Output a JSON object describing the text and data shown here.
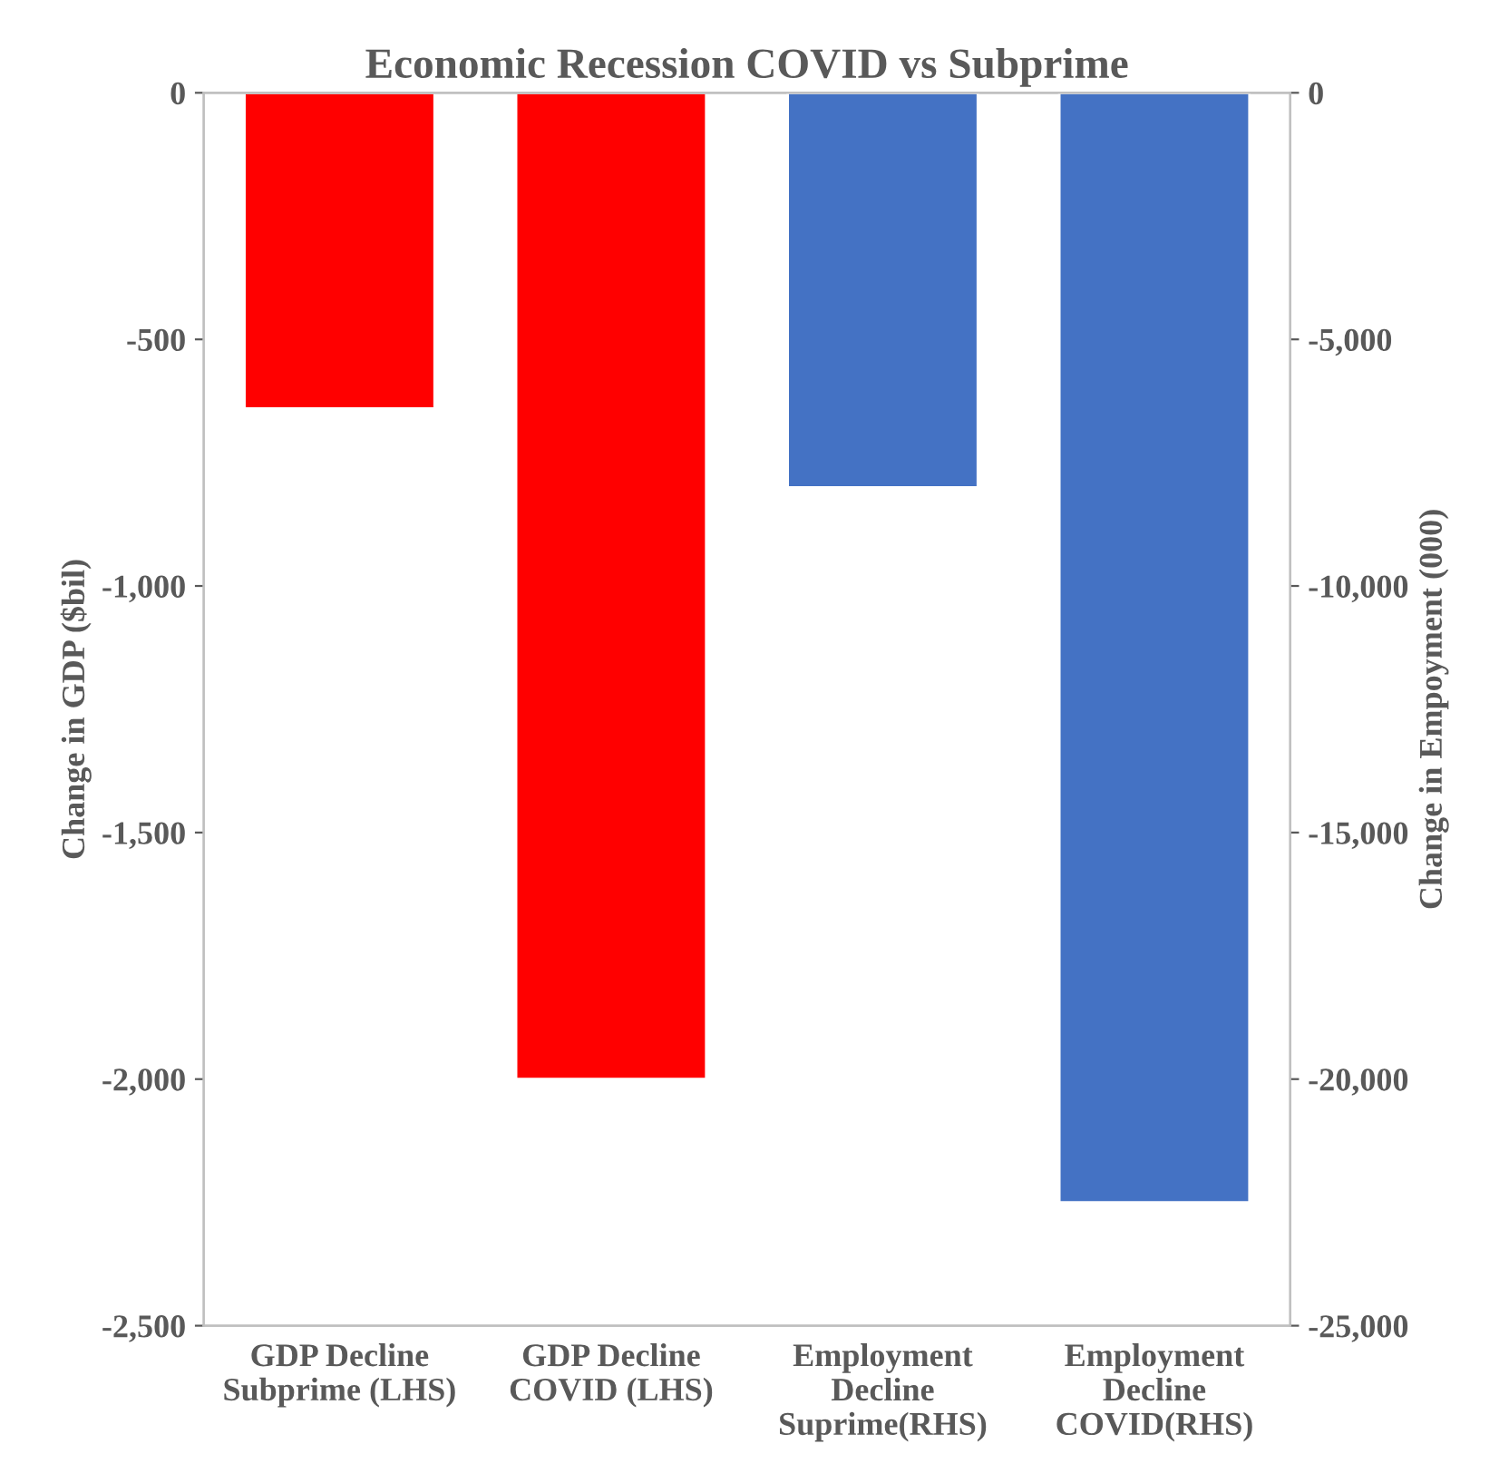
{
  "chart_data": {
    "type": "bar",
    "title": "Economic Recession COVID vs Subprime",
    "categories": [
      "GDP Decline\nSubprime (LHS)",
      "GDP Decline\nCOVID (LHS)",
      "Employment\nDecline\nSuprime(RHS)",
      "Employment\nDecline\nCOVID(RHS)"
    ],
    "ylabel": "Change in GDP ($bil)",
    "y2label": "Change in Empoyment (000)",
    "series": [
      {
        "axis": "y",
        "colors": [
          "#ff0000",
          "#ff0000",
          null,
          null
        ],
        "values": [
          -640,
          -2000,
          null,
          null
        ]
      },
      {
        "axis": "y2",
        "colors": [
          null,
          null,
          "#4472c4",
          "#4472c4"
        ],
        "values": [
          null,
          null,
          -8000,
          -22500
        ]
      }
    ],
    "ylim": [
      -2500,
      0
    ],
    "yticks": [
      {
        "value": -2500,
        "label": "-2,500"
      },
      {
        "value": -2000,
        "label": "-2,000"
      },
      {
        "value": -1500,
        "label": "-1,500"
      },
      {
        "value": -1000,
        "label": "-1,000"
      },
      -500,
      0
    ],
    "y2lim": [
      -25000,
      0
    ],
    "y2ticks": [
      {
        "value": -25000,
        "label": "-25,000"
      },
      {
        "value": -20000,
        "label": "-20,000"
      },
      {
        "value": -15000,
        "label": "-15,000"
      },
      {
        "value": -10000,
        "label": "-10,000"
      },
      {
        "value": -5000,
        "label": "-5,000"
      },
      0
    ],
    "grid": false,
    "legend": false
  }
}
